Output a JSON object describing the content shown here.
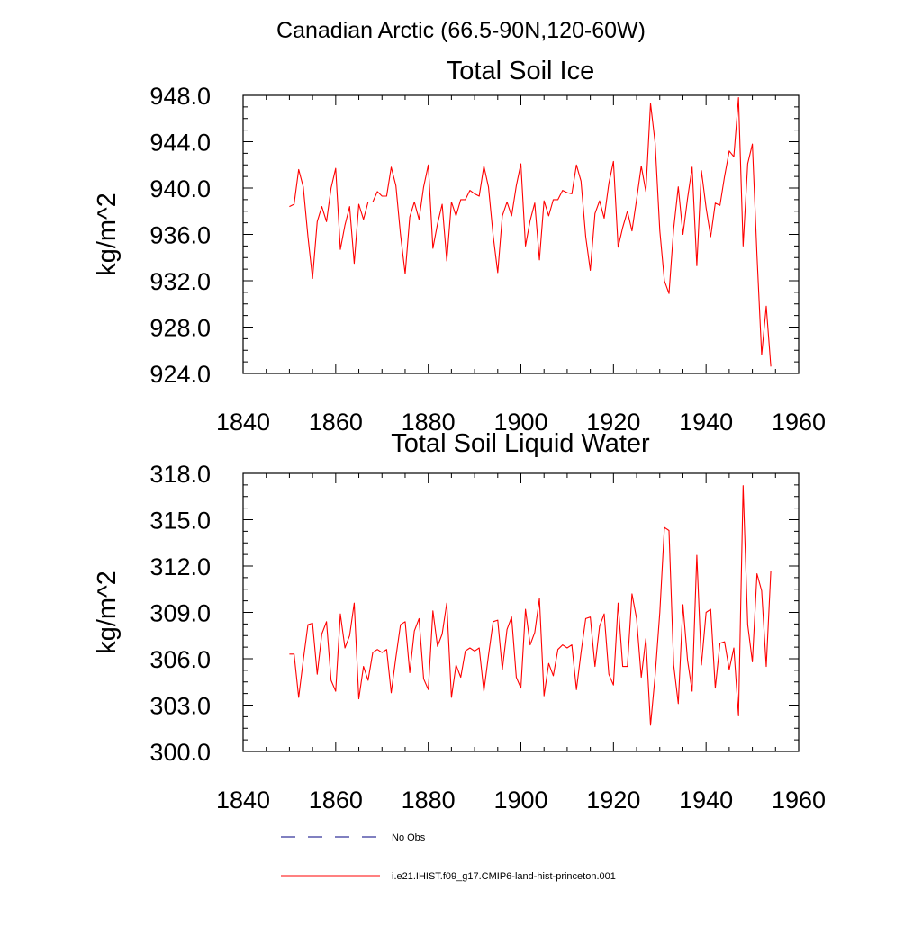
{
  "figure": {
    "title": "Canadian Arctic (66.5-90N,120-60W)"
  },
  "legend": {
    "position": "bottom",
    "entries": [
      {
        "label": "No Obs",
        "style": "dashed",
        "color": "#000080"
      },
      {
        "label": "i.e21.IHIST.f09_g17.CMIP6-land-hist-princeton.001",
        "style": "solid",
        "color": "#ff0000"
      }
    ]
  },
  "chart_data": [
    {
      "type": "line",
      "title": "Total Soil Ice",
      "xlabel": "",
      "ylabel": "kg/m^2",
      "xlim": [
        1840,
        1960
      ],
      "ylim": [
        924,
        948
      ],
      "xticks": [
        "1840",
        "1860",
        "1880",
        "1900",
        "1920",
        "1940",
        "1960"
      ],
      "yticks": [
        "924.0",
        "928.0",
        "932.0",
        "936.0",
        "940.0",
        "944.0",
        "948.0"
      ],
      "series": [
        {
          "color": "#ff0000",
          "x": [
            1850,
            1851,
            1852,
            1853,
            1854,
            1855,
            1856,
            1857,
            1858,
            1859,
            1860,
            1861,
            1862,
            1863,
            1864,
            1865,
            1866,
            1867,
            1868,
            1869,
            1870,
            1871,
            1872,
            1873,
            1874,
            1875,
            1876,
            1877,
            1878,
            1879,
            1880,
            1881,
            1882,
            1883,
            1884,
            1885,
            1886,
            1887,
            1888,
            1889,
            1890,
            1891,
            1892,
            1893,
            1894,
            1895,
            1896,
            1897,
            1898,
            1899,
            1900,
            1901,
            1902,
            1903,
            1904,
            1905,
            1906,
            1907,
            1908,
            1909,
            1910,
            1911,
            1912,
            1913,
            1914,
            1915,
            1916,
            1917,
            1918,
            1919,
            1920,
            1921,
            1922,
            1923,
            1924,
            1925,
            1926,
            1927,
            1928,
            1929,
            1930,
            1931,
            1932,
            1933,
            1934,
            1935,
            1936,
            1937,
            1938,
            1939,
            1940,
            1941,
            1942,
            1943,
            1944,
            1945,
            1946,
            1947,
            1948,
            1949,
            1950,
            1951,
            1952,
            1953,
            1954
          ],
          "y": [
            938.4,
            938.6,
            941.6,
            940.1,
            935.8,
            932.2,
            937.1,
            938.4,
            937.1,
            940.0,
            941.7,
            934.7,
            936.8,
            938.4,
            933.5,
            938.6,
            937.3,
            938.8,
            938.8,
            939.7,
            939.3,
            939.3,
            941.8,
            940.2,
            936.0,
            932.6,
            937.5,
            938.8,
            937.3,
            940.1,
            942.0,
            934.8,
            936.9,
            938.6,
            933.7,
            938.8,
            937.6,
            939.0,
            939.0,
            939.8,
            939.5,
            939.3,
            941.9,
            940.1,
            935.9,
            932.7,
            937.6,
            938.8,
            937.6,
            940.2,
            942.1,
            935.0,
            937.2,
            938.7,
            933.8,
            938.9,
            937.6,
            939.0,
            939.0,
            939.8,
            939.6,
            939.5,
            942.0,
            940.6,
            935.8,
            932.9,
            937.8,
            938.9,
            937.4,
            940.4,
            942.3,
            934.9,
            936.6,
            938.0,
            936.3,
            939.0,
            941.9,
            939.7,
            947.3,
            943.9,
            936.3,
            932.0,
            930.9,
            936.5,
            940.1,
            936.0,
            939.1,
            941.8,
            933.3,
            941.5,
            938.3,
            935.8,
            938.7,
            938.5,
            941.0,
            943.2,
            942.7,
            947.8,
            935.0,
            942.1,
            943.8,
            934.2,
            925.6,
            929.8,
            924.6
          ]
        }
      ]
    },
    {
      "type": "line",
      "title": "Total Soil Liquid Water",
      "xlabel": "",
      "ylabel": "kg/m^2",
      "xlim": [
        1840,
        1960
      ],
      "ylim": [
        300,
        318
      ],
      "xticks": [
        "1840",
        "1860",
        "1880",
        "1900",
        "1920",
        "1940",
        "1960"
      ],
      "yticks": [
        "300.0",
        "303.0",
        "306.0",
        "309.0",
        "312.0",
        "315.0",
        "318.0"
      ],
      "series": [
        {
          "color": "#ff0000",
          "x": [
            1850,
            1851,
            1852,
            1853,
            1854,
            1855,
            1856,
            1857,
            1858,
            1859,
            1860,
            1861,
            1862,
            1863,
            1864,
            1865,
            1866,
            1867,
            1868,
            1869,
            1870,
            1871,
            1872,
            1873,
            1874,
            1875,
            1876,
            1877,
            1878,
            1879,
            1880,
            1881,
            1882,
            1883,
            1884,
            1885,
            1886,
            1887,
            1888,
            1889,
            1890,
            1891,
            1892,
            1893,
            1894,
            1895,
            1896,
            1897,
            1898,
            1899,
            1900,
            1901,
            1902,
            1903,
            1904,
            1905,
            1906,
            1907,
            1908,
            1909,
            1910,
            1911,
            1912,
            1913,
            1914,
            1915,
            1916,
            1917,
            1918,
            1919,
            1920,
            1921,
            1922,
            1923,
            1924,
            1925,
            1926,
            1927,
            1928,
            1929,
            1930,
            1931,
            1932,
            1933,
            1934,
            1935,
            1936,
            1937,
            1938,
            1939,
            1940,
            1941,
            1942,
            1943,
            1944,
            1945,
            1946,
            1947,
            1948,
            1949,
            1950,
            1951,
            1952,
            1953,
            1954
          ],
          "y": [
            306.3,
            306.3,
            303.5,
            305.9,
            308.2,
            308.3,
            305.0,
            307.6,
            308.4,
            304.6,
            303.9,
            308.9,
            306.7,
            307.5,
            309.6,
            303.4,
            305.5,
            304.6,
            306.4,
            306.6,
            306.4,
            306.6,
            303.8,
            306.1,
            308.2,
            308.4,
            305.1,
            307.8,
            308.6,
            304.7,
            304.0,
            309.1,
            306.8,
            307.6,
            309.6,
            303.5,
            305.6,
            304.8,
            306.5,
            306.7,
            306.5,
            306.7,
            303.9,
            306.2,
            308.4,
            308.5,
            305.3,
            307.9,
            308.7,
            304.8,
            304.1,
            309.2,
            306.9,
            307.7,
            309.9,
            303.6,
            305.7,
            304.9,
            306.6,
            306.9,
            306.7,
            306.9,
            304.0,
            306.4,
            308.6,
            308.7,
            305.5,
            308.1,
            308.9,
            305.0,
            304.3,
            309.6,
            305.5,
            305.5,
            310.2,
            308.6,
            304.8,
            307.3,
            301.7,
            304.9,
            309.0,
            314.5,
            314.3,
            305.6,
            303.1,
            309.5,
            305.9,
            303.9,
            312.7,
            305.6,
            309.0,
            309.2,
            304.1,
            307.0,
            307.1,
            305.3,
            306.7,
            302.3,
            317.2,
            308.2,
            305.8,
            311.5,
            310.4,
            305.5,
            311.7
          ]
        }
      ]
    }
  ]
}
